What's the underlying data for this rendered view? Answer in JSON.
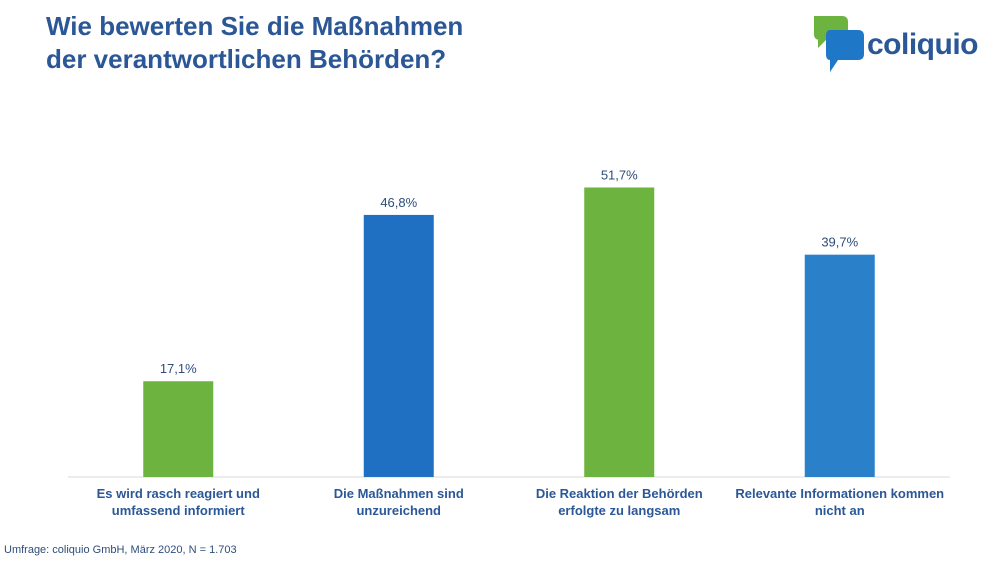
{
  "header": {
    "title_line1": "Wie bewerten Sie die Maßnahmen",
    "title_line2": "der verantwortlichen Behörden?"
  },
  "logo": {
    "text": "coliquio",
    "icon": "speech-bubble-logo-icon",
    "colors": {
      "green": "#6cb33f",
      "blue": "#1f77c7"
    }
  },
  "footer": {
    "source": "Umfrage: coliquio GmbH, März 2020, N = 1.703"
  },
  "chart_data": {
    "type": "bar",
    "title": "Wie bewerten Sie die Maßnahmen der verantwortlichen Behörden?",
    "categories": [
      [
        "Es wird rasch reagiert und",
        "umfassend informiert"
      ],
      [
        "Die Maßnahmen sind",
        "unzureichend"
      ],
      [
        "Die Reaktion der Behörden",
        "erfolgte zu langsam"
      ],
      [
        "Relevante Informationen kommen",
        "nicht an"
      ]
    ],
    "values": [
      17.1,
      46.8,
      51.7,
      39.7
    ],
    "value_labels": [
      "17,1%",
      "46,8%",
      "51,7%",
      "39,7%"
    ],
    "colors": [
      "#6cb33f",
      "#1f6fc2",
      "#6cb33f",
      "#2a80c9"
    ],
    "xlabel": "",
    "ylabel": "",
    "ylim": [
      0,
      60
    ],
    "grid": false,
    "legend": "none"
  }
}
